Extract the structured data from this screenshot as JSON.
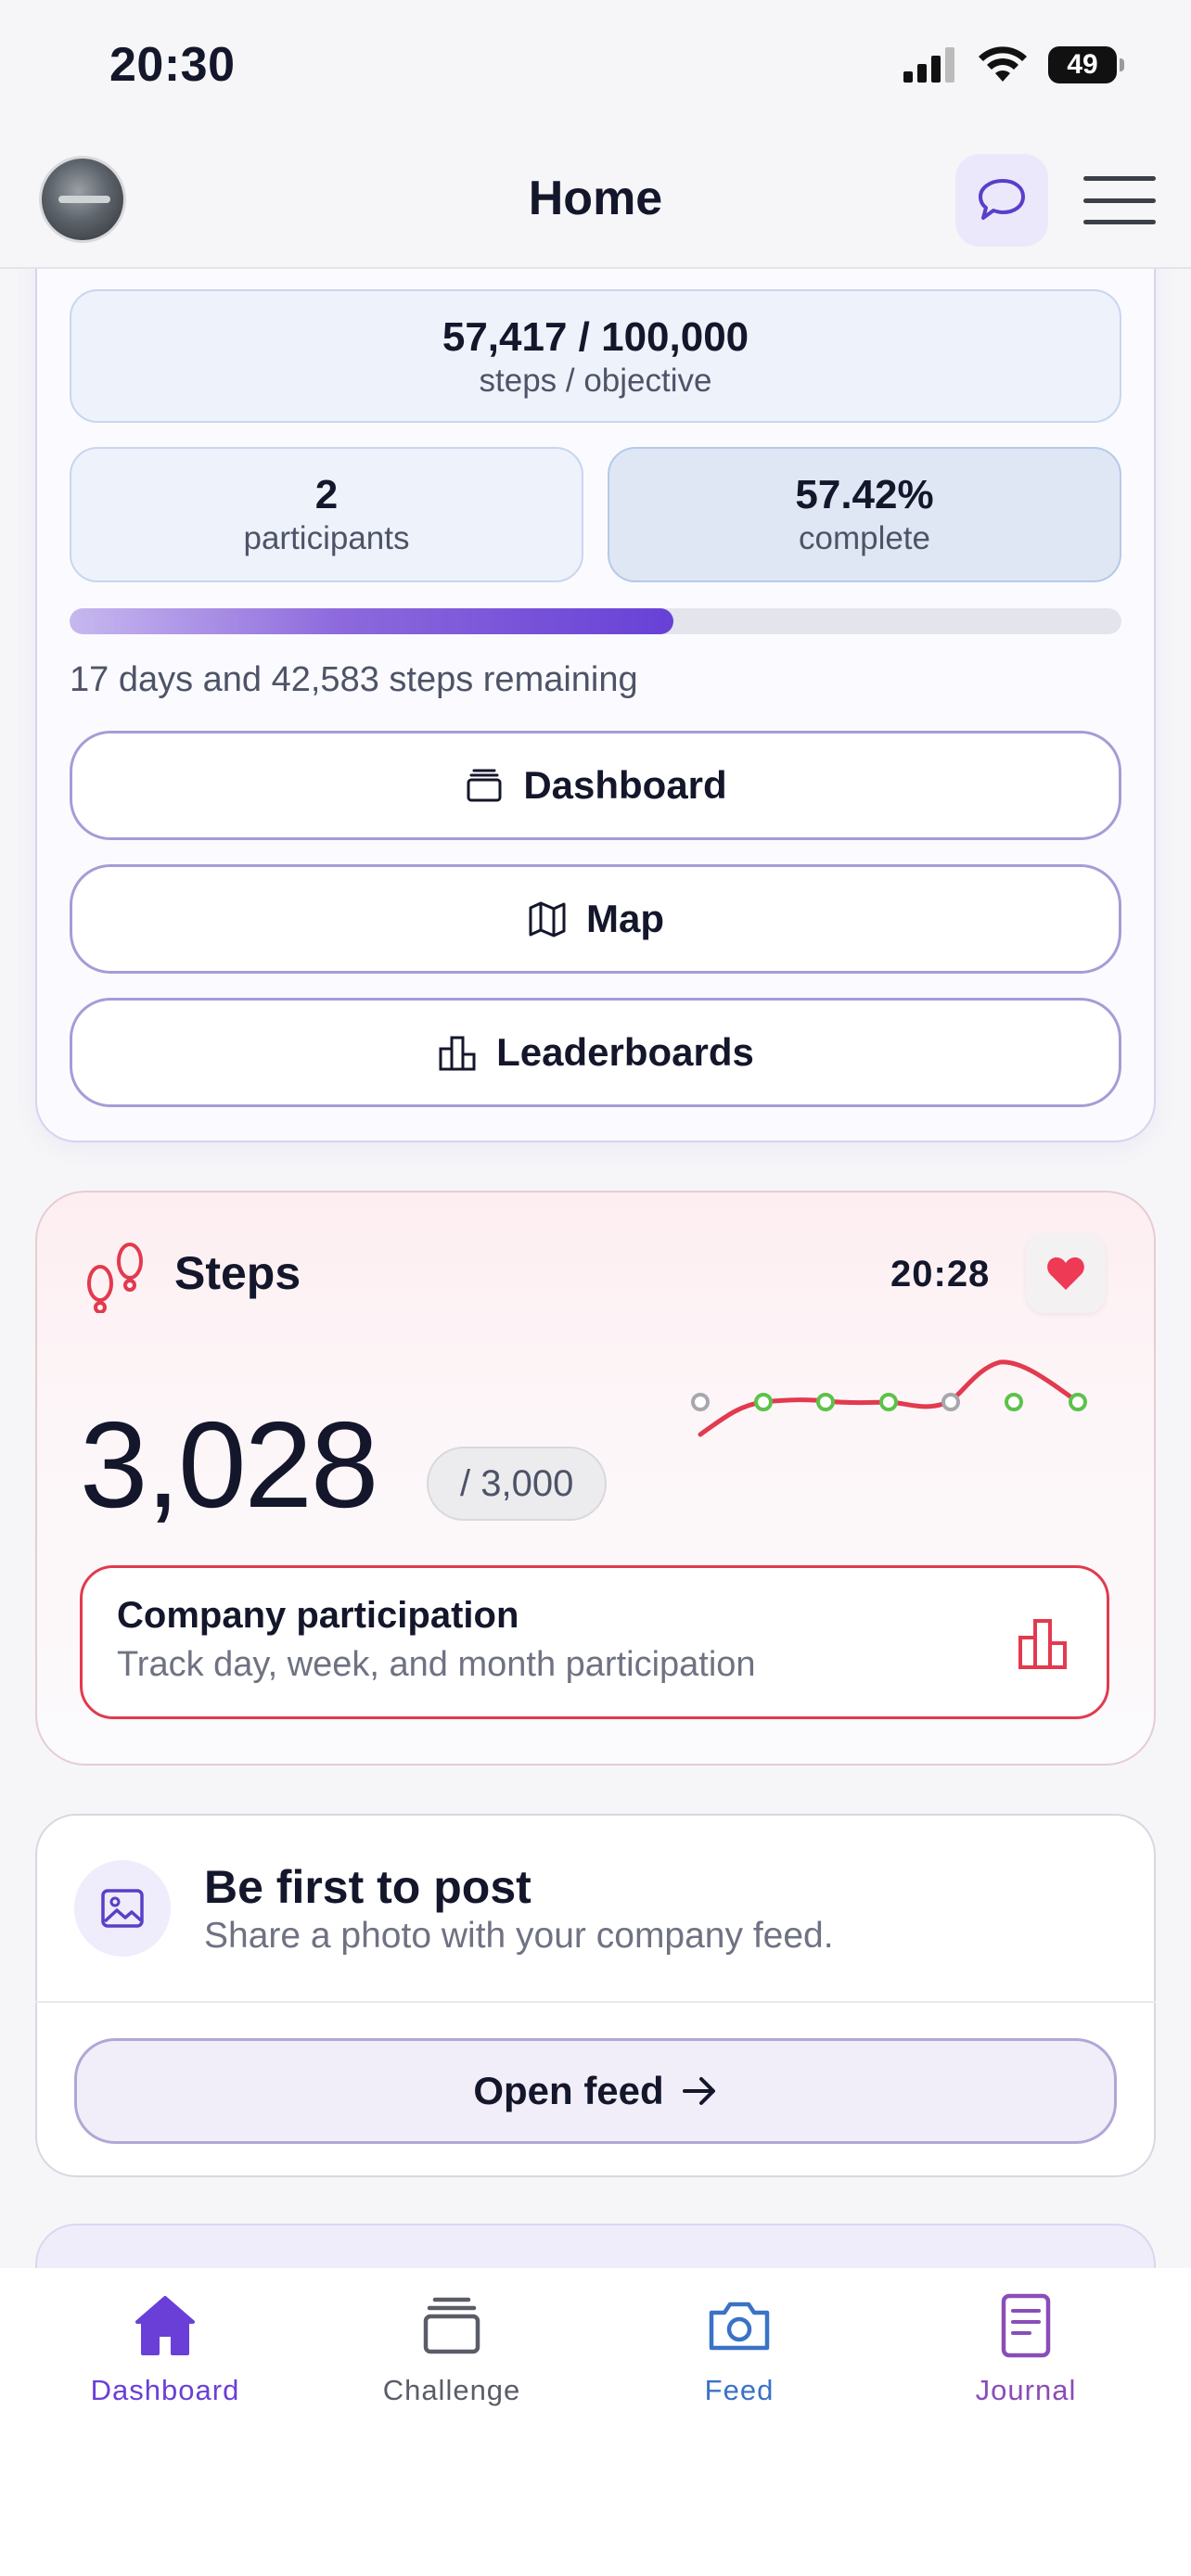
{
  "status_bar": {
    "time": "20:30",
    "battery": "49"
  },
  "header": {
    "title": "Home"
  },
  "challenge": {
    "steps_objective": "57,417 / 100,000",
    "steps_objective_label": "steps / objective",
    "participants_value": "2",
    "participants_label": "participants",
    "complete_value": "57.42%",
    "complete_label": "complete",
    "progress_fraction": 0.5742,
    "remaining_text": "17 days and 42,583 steps remaining",
    "buttons": {
      "dashboard": "Dashboard",
      "map": "Map",
      "leaderboards": "Leaderboards"
    }
  },
  "steps_card": {
    "title": "Steps",
    "time": "20:28",
    "value": "3,028",
    "goal": "/ 3,000",
    "sparkline_met_goal": [
      false,
      true,
      true,
      true,
      false,
      true,
      true
    ],
    "participation_title": "Company participation",
    "participation_subtitle": "Track day, week, and month participation"
  },
  "feed_card": {
    "title": "Be first to post",
    "subtitle": "Share a photo with your company feed.",
    "button": "Open feed"
  },
  "tabbar": {
    "items": [
      {
        "label": "Dashboard",
        "color": "#6a3fd8"
      },
      {
        "label": "Challenge",
        "color": "#5a5d68"
      },
      {
        "label": "Feed",
        "color": "#3a72c6"
      },
      {
        "label": "Journal",
        "color": "#8a4db8"
      }
    ]
  },
  "colors": {
    "accent": "#6741d6",
    "steps_red": "#e23a4e",
    "sparkline_green": "#5cc24a"
  }
}
